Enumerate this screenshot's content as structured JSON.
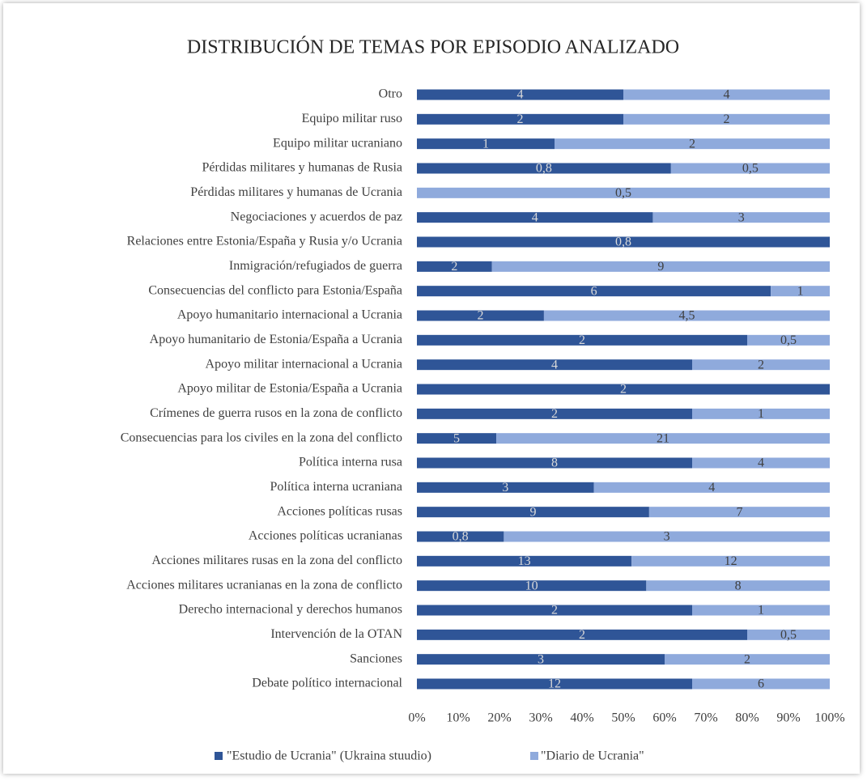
{
  "chart_data": {
    "type": "stacked_bar_100",
    "title": "DISTRIBUCIÓN DE TEMAS POR EPISODIO ANALIZADO",
    "categories": [
      "Otro",
      "Equipo militar ruso",
      "Equipo militar ucraniano",
      "Pérdidas militares y humanas de Rusia",
      "Pérdidas militares y humanas de Ucrania",
      "Negociaciones y acuerdos de paz",
      "Relaciones entre Estonia/España y Rusia y/o Ucrania",
      "Inmigración/refugiados de guerra",
      "Consecuencias del conflicto para Estonia/España",
      "Apoyo humanitario internacional a Ucrania",
      "Apoyo humanitario de Estonia/España a Ucrania",
      "Apoyo militar internacional a Ucrania",
      "Apoyo militar de Estonia/España a Ucrania",
      "Crímenes de guerra rusos en la zona de conflicto",
      "Consecuencias para los civiles en la zona del conflicto",
      "Política interna rusa",
      "Política interna ucraniana",
      "Acciones políticas rusas",
      "Acciones políticas ucranianas",
      "Acciones militares rusas en la zona del conflicto",
      "Acciones militares ucranianas en la zona de conflicto",
      "Derecho internacional y derechos humanos",
      "Intervención de la OTAN",
      "Sanciones",
      "Debate político internacional"
    ],
    "series": [
      {
        "name": "\"Estudio de Ucrania\" (Ukraina stuudio)",
        "color": "#2f5597",
        "values": [
          4,
          2,
          1,
          0.8,
          null,
          4,
          0.8,
          2,
          6,
          2,
          2,
          4,
          2,
          2,
          5,
          8,
          3,
          9,
          0.8,
          13,
          10,
          2,
          2,
          3,
          12
        ],
        "value_labels": [
          "4",
          "2",
          "1",
          "0,8",
          null,
          "4",
          "0,8",
          "2",
          "6",
          "2",
          "2",
          "4",
          "2",
          "2",
          "5",
          "8",
          "3",
          "9",
          "0,8",
          "13",
          "10",
          "2",
          "2",
          "3",
          "12"
        ]
      },
      {
        "name": "\"Diario de Ucrania\"",
        "color": "#8faadc",
        "values": [
          4,
          2,
          2,
          0.5,
          0.5,
          3,
          null,
          9,
          1,
          4.5,
          0.5,
          2,
          null,
          1,
          21,
          4,
          4,
          7,
          3,
          12,
          8,
          1,
          0.5,
          2,
          6
        ],
        "value_labels": [
          "4",
          "2",
          "2",
          "0,5",
          "0,5",
          "3",
          null,
          "9",
          "1",
          "4,5",
          "0,5",
          "2",
          null,
          "1",
          "21",
          "4",
          "4",
          "7",
          "3",
          "12",
          "8",
          "1",
          "0,5",
          "2",
          "6"
        ]
      }
    ],
    "xlim": [
      0,
      100
    ],
    "xticks": [
      {
        "value": 0,
        "label": "0%"
      },
      {
        "value": 10,
        "label": "10%"
      },
      {
        "value": 20,
        "label": "20%"
      },
      {
        "value": 30,
        "label": "30%"
      },
      {
        "value": 40,
        "label": "40%"
      },
      {
        "value": 50,
        "label": "50%"
      },
      {
        "value": 60,
        "label": "60%"
      },
      {
        "value": 70,
        "label": "70%"
      },
      {
        "value": 80,
        "label": "80%"
      },
      {
        "value": 90,
        "label": "90%"
      },
      {
        "value": 100,
        "label": "100%"
      }
    ],
    "legend": "bottom"
  }
}
